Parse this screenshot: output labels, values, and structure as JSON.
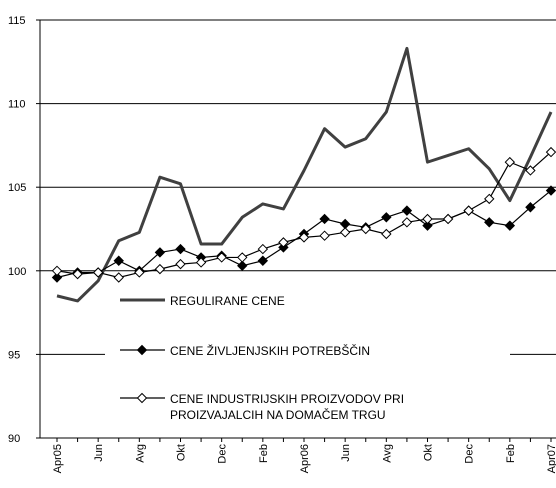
{
  "chart_data": {
    "type": "line",
    "categories": [
      "Apr05",
      null,
      "Jun",
      null,
      "Avg",
      null,
      "Okt",
      null,
      "Dec",
      null,
      "Feb",
      null,
      "Apr06",
      null,
      "Jun",
      null,
      "Avg",
      null,
      "Okt",
      null,
      "Dec",
      null,
      "Feb",
      null,
      "Apr07"
    ],
    "ylim": [
      90,
      115
    ],
    "yticks": [
      90,
      95,
      100,
      105,
      110,
      115
    ],
    "grid": true,
    "legend": "center",
    "series": [
      {
        "name": "REGULIRANE CENE",
        "color": "#404040",
        "marker": "none",
        "values": [
          98.5,
          98.2,
          99.4,
          101.8,
          102.3,
          105.6,
          105.2,
          101.6,
          101.6,
          103.2,
          104.0,
          103.7,
          106.0,
          108.5,
          107.4,
          107.9,
          109.5,
          113.3,
          106.5,
          106.9,
          107.3,
          106.1,
          104.2,
          106.8,
          109.5
        ]
      },
      {
        "name": "CENE ŽIVLJENJSKIH POTREBŠČIN",
        "color": "#000000",
        "marker": "filled-diamond",
        "values": [
          99.6,
          99.9,
          99.9,
          100.6,
          100.0,
          101.1,
          101.3,
          100.8,
          100.9,
          100.3,
          100.6,
          101.4,
          102.2,
          103.1,
          102.8,
          102.6,
          103.2,
          103.6,
          102.7,
          103.1,
          103.6,
          102.9,
          102.7,
          103.8,
          104.8
        ]
      },
      {
        "name": "CENE INDUSTRIJSKIH PROIZVODOV PRI PROIZVAJALCIH NA DOMAČEM TRGU",
        "color": "#000000",
        "marker": "open-diamond",
        "values": [
          100.0,
          99.8,
          99.9,
          99.6,
          99.9,
          100.1,
          100.4,
          100.5,
          100.8,
          100.8,
          101.3,
          101.7,
          102.0,
          102.1,
          102.3,
          102.5,
          102.2,
          102.9,
          103.1,
          103.1,
          103.6,
          104.3,
          106.5,
          106.0,
          107.1
        ]
      }
    ]
  }
}
